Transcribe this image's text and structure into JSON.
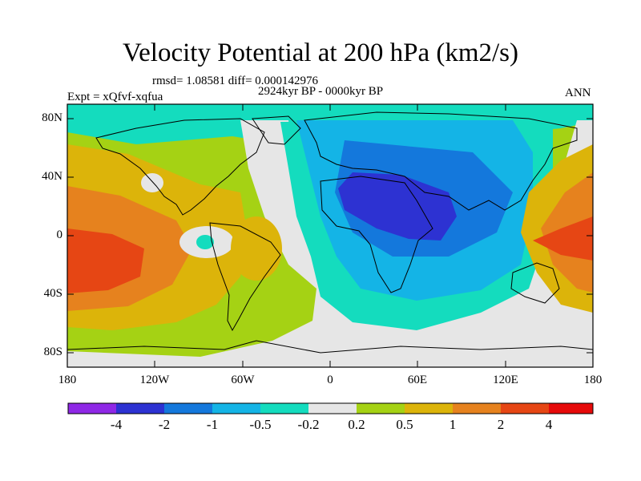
{
  "title": "Velocity Potential at 200 hPa (km2/s)",
  "stats_line": "rmsd= 1.08581 diff= 0.000142976",
  "period": "2924kyr BP - 0000kyr BP",
  "experiment": "Expt = xQfvf-xqfua",
  "season": "ANN",
  "lat_ticks": [
    "80N",
    "40N",
    "0",
    "40S",
    "80S"
  ],
  "lon_ticks": [
    "180",
    "120W",
    "60W",
    "0",
    "60E",
    "120E",
    "180"
  ],
  "colorbar": {
    "colors": [
      "#8f28e6",
      "#2d32d2",
      "#1478dc",
      "#14b4e6",
      "#14dcbe",
      "#e6e6e6",
      "#a5d214",
      "#dcb40a",
      "#e6821e",
      "#e64614",
      "#e60a0a"
    ],
    "labels": [
      "-4",
      "-2",
      "-1",
      "-0.5",
      "-0.2",
      "0.2",
      "0.5",
      "1",
      "2",
      "4"
    ]
  },
  "palette": {
    "very_neg": "#2d32d2",
    "neg": "#1478dc",
    "mid_neg": "#14b4e6",
    "weak_neg": "#14dcbe",
    "neutral": "#e6e6e6",
    "weak_pos": "#a5d214",
    "pos": "#dcb40a",
    "mid_pos": "#e6821e",
    "strong_pos": "#e64614"
  }
}
